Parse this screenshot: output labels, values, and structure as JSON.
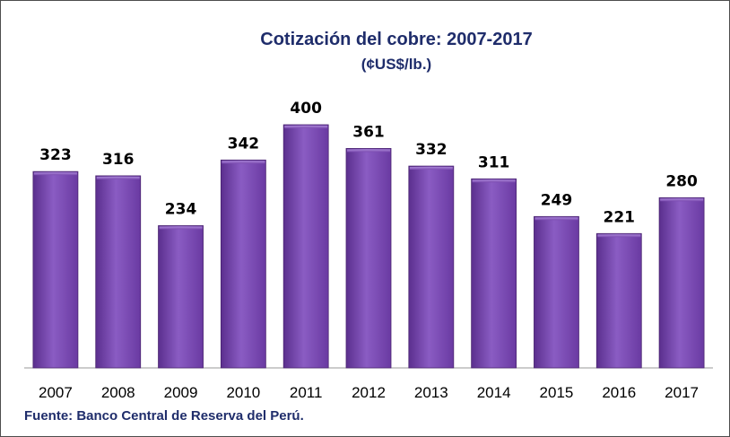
{
  "chart_data": {
    "type": "bar",
    "title": "Cotización del cobre: 2007-2017",
    "subtitle": "(¢US$/lb.)",
    "categories": [
      "2007",
      "2008",
      "2009",
      "2010",
      "2011",
      "2012",
      "2013",
      "2014",
      "2015",
      "2016",
      "2017"
    ],
    "values": [
      323,
      316,
      234,
      342,
      400,
      361,
      332,
      311,
      249,
      221,
      280
    ],
    "ylim": [
      0,
      400
    ],
    "grid": false,
    "bar_color": "#7b4bb0",
    "source": "Fuente: Banco Central de Reserva del Perú."
  }
}
